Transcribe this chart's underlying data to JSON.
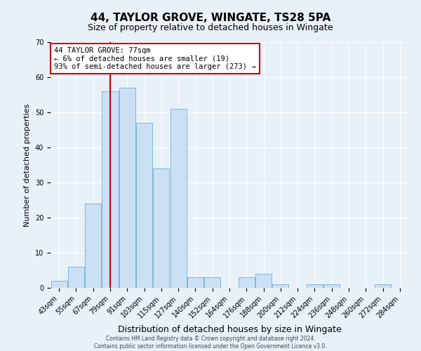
{
  "title": "44, TAYLOR GROVE, WINGATE, TS28 5PA",
  "subtitle": "Size of property relative to detached houses in Wingate",
  "xlabel": "Distribution of detached houses by size in Wingate",
  "ylabel": "Number of detached properties",
  "bar_labels": [
    "43sqm",
    "55sqm",
    "67sqm",
    "79sqm",
    "91sqm",
    "103sqm",
    "115sqm",
    "127sqm",
    "140sqm",
    "152sqm",
    "164sqm",
    "176sqm",
    "188sqm",
    "200sqm",
    "212sqm",
    "224sqm",
    "236sqm",
    "248sqm",
    "260sqm",
    "272sqm",
    "284sqm"
  ],
  "bar_values": [
    2,
    6,
    24,
    56,
    57,
    47,
    34,
    51,
    3,
    3,
    0,
    3,
    4,
    1,
    0,
    1,
    1,
    0,
    0,
    1,
    0
  ],
  "bar_color": "#cce0f5",
  "bar_edge_color": "#7ab8d9",
  "vline_x_index": 3,
  "vline_color": "#cc0000",
  "ylim": [
    0,
    70
  ],
  "yticks": [
    0,
    10,
    20,
    30,
    40,
    50,
    60,
    70
  ],
  "annotation_title": "44 TAYLOR GROVE: 77sqm",
  "annotation_line1": "← 6% of detached houses are smaller (19)",
  "annotation_line2": "93% of semi-detached houses are larger (273) →",
  "annotation_box_color": "#ffffff",
  "annotation_box_edge": "#cc0000",
  "footer_line1": "Contains HM Land Registry data © Crown copyright and database right 2024.",
  "footer_line2": "Contains public sector information licensed under the Open Government Licence v3.0.",
  "background_color": "#e8f0f8",
  "plot_background": "#e8f0f8",
  "title_fontsize": 11,
  "subtitle_fontsize": 9,
  "ylabel_fontsize": 8,
  "xlabel_fontsize": 9,
  "tick_fontsize": 7,
  "footer_fontsize": 5.5
}
